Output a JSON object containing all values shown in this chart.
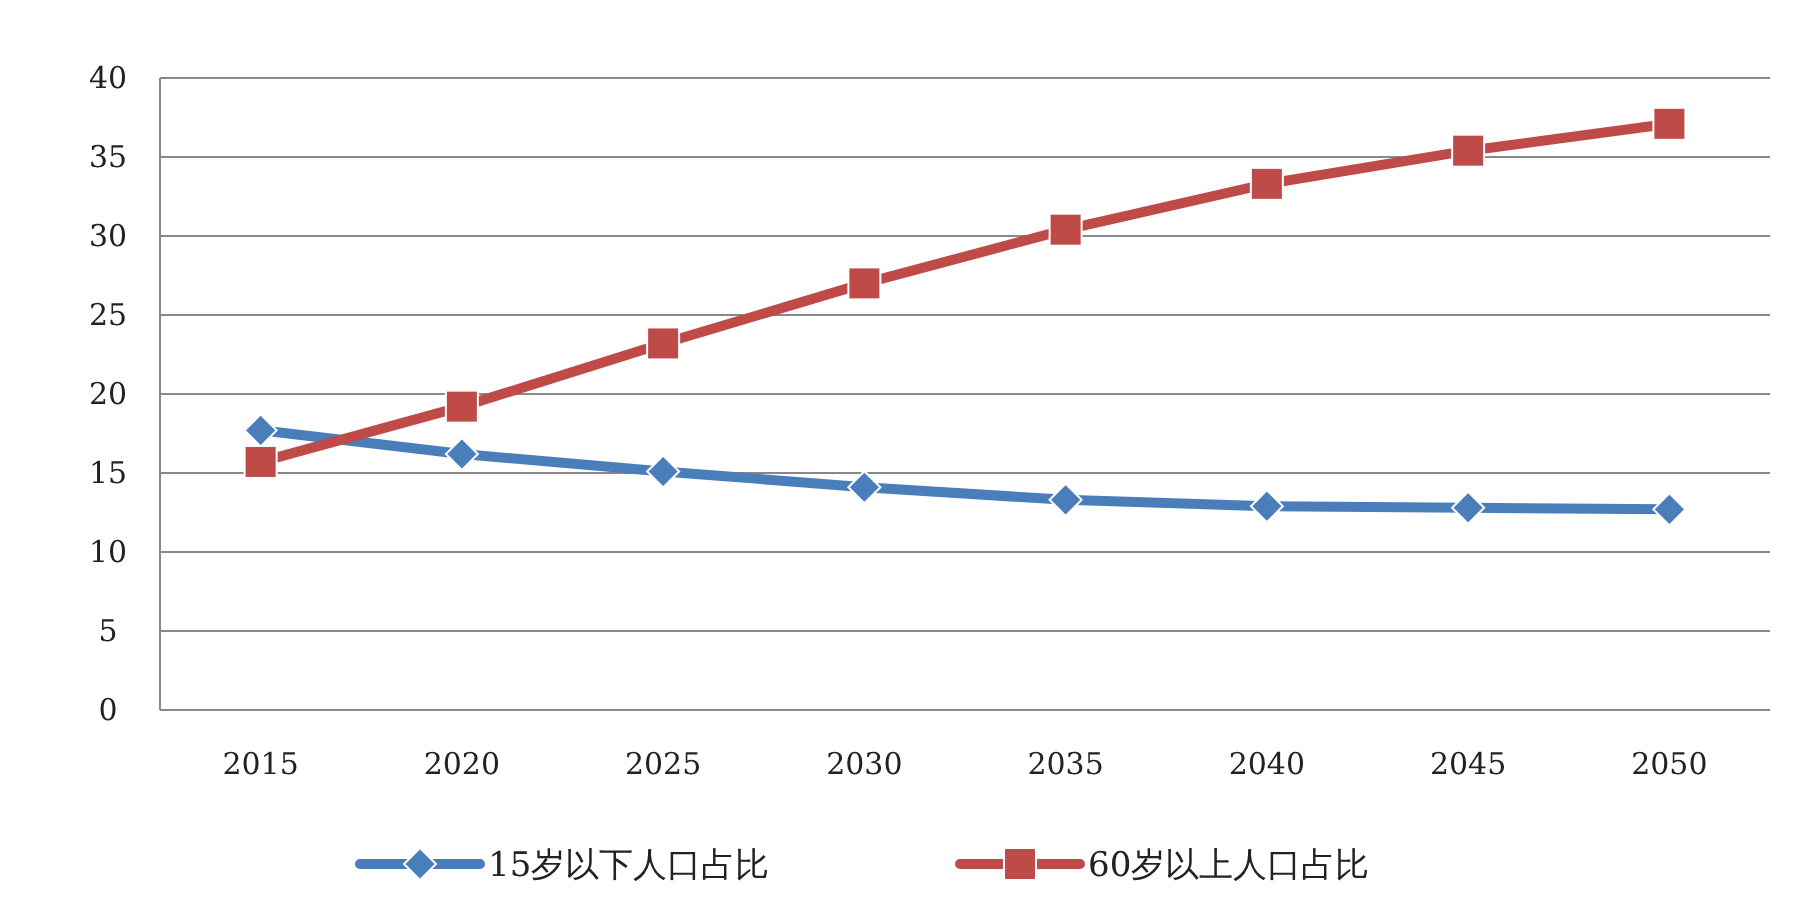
{
  "chart_data": {
    "type": "line",
    "categories": [
      "2015",
      "2020",
      "2025",
      "2030",
      "2035",
      "2040",
      "2045",
      "2050"
    ],
    "series": [
      {
        "name": "15岁以下人口占比",
        "color": "#4a7ebb",
        "marker": "diamond",
        "values": [
          17.7,
          16.2,
          15.1,
          14.1,
          13.3,
          12.9,
          12.8,
          12.7
        ]
      },
      {
        "name": "60岁以上人口占比",
        "color": "#be4b48",
        "marker": "square",
        "values": [
          15.7,
          19.2,
          23.2,
          27.0,
          30.4,
          33.3,
          35.4,
          37.1
        ]
      }
    ],
    "ylim": [
      0,
      40
    ],
    "yticks": [
      0,
      5,
      10,
      15,
      20,
      25,
      30,
      35,
      40
    ],
    "grid": "y",
    "legend": "bottom",
    "line_style": "solid"
  }
}
